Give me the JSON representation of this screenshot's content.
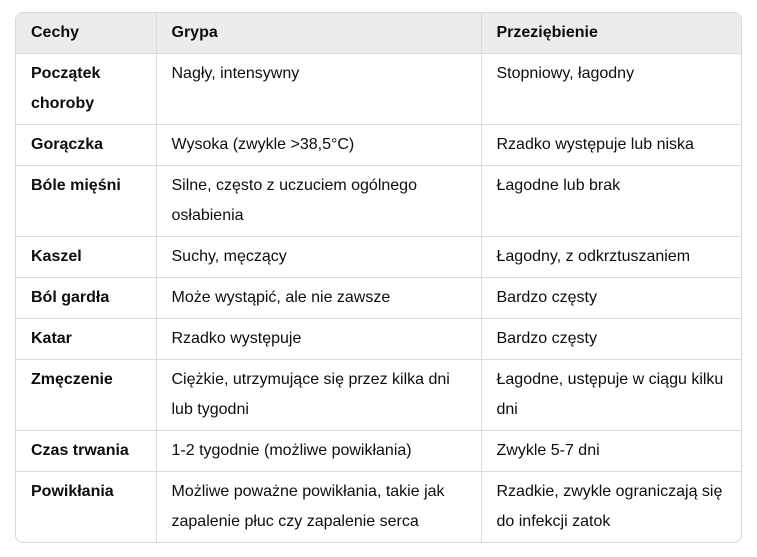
{
  "table": {
    "headers": [
      "Cechy",
      "Grypa",
      "Przeziębienie"
    ],
    "rows": [
      [
        "Początek choroby",
        "Nagły, intensywny",
        "Stopniowy, łagodny"
      ],
      [
        "Gorączka",
        "Wysoka (zwykle >38,5°C)",
        "Rzadko występuje lub niska"
      ],
      [
        "Bóle mięśni",
        "Silne, często z uczuciem ogólnego osłabienia",
        "Łagodne lub brak"
      ],
      [
        "Kaszel",
        "Suchy, męczący",
        "Łagodny, z odkrztuszaniem"
      ],
      [
        "Ból gardła",
        "Może wystąpić, ale nie zawsze",
        "Bardzo częsty"
      ],
      [
        "Katar",
        "Rzadko występuje",
        "Bardzo częsty"
      ],
      [
        "Zmęczenie",
        "Ciężkie, utrzymujące się przez kilka dni lub tygodni",
        "Łagodne, ustępuje w ciągu kilku dni"
      ],
      [
        "Czas trwania",
        "1-2 tygodnie (możliwe powikłania)",
        "Zwykle 5-7 dni"
      ],
      [
        "Powikłania",
        "Możliwe poważne powikłania, takie jak zapalenie płuc czy zapalenie serca",
        "Rzadkie, zwykle ograniczają się do infekcji zatok"
      ]
    ]
  }
}
